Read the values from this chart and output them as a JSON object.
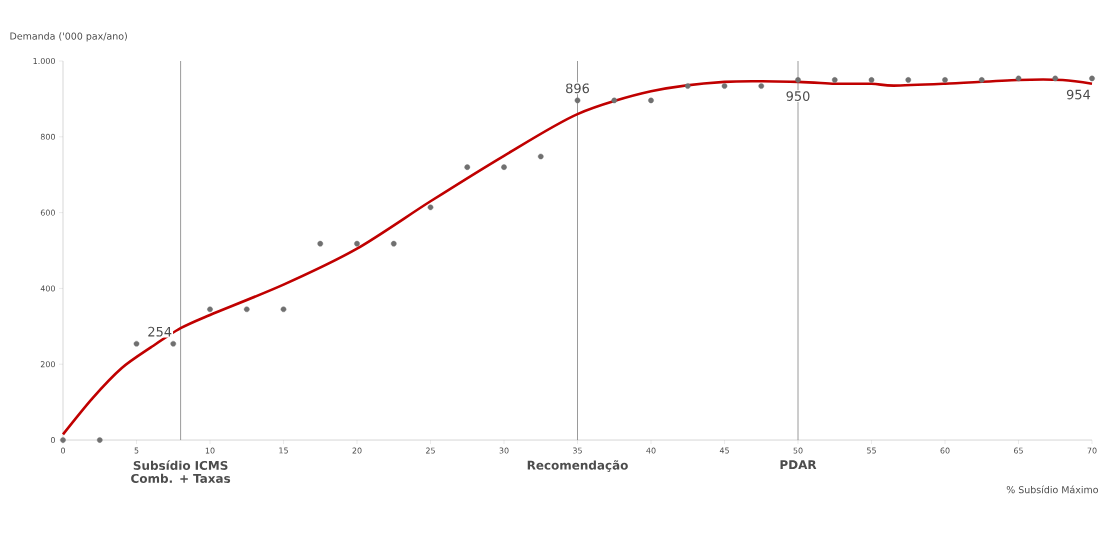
{
  "chart_data": {
    "type": "scatter",
    "ylabel": "Demanda ('000 pax/ano)",
    "xlabel": "% Subsídio Máximo",
    "xlim": [
      0,
      70
    ],
    "xticks": [
      0,
      5,
      10,
      15,
      20,
      25,
      30,
      35,
      40,
      45,
      50,
      55,
      60,
      65,
      70
    ],
    "ylim": [
      0,
      1000
    ],
    "yticks": [
      0,
      200,
      400,
      600,
      800,
      {
        "value": 1000,
        "label": "1.000"
      }
    ],
    "series": [
      {
        "marker": "circle",
        "color": "#707070",
        "x": [
          0,
          2.5,
          5,
          7.5,
          10,
          12.5,
          15,
          17.5,
          20,
          22.5,
          25,
          27.5,
          30,
          32.5,
          35,
          37.5,
          40,
          42.5,
          45,
          47.5,
          50,
          52.5,
          55,
          57.5,
          60,
          62.5,
          65,
          67.5,
          70
        ],
        "values": [
          0,
          0,
          254,
          254,
          345,
          345,
          345,
          518,
          518,
          518,
          614,
          720,
          720,
          748,
          896,
          896,
          896,
          934,
          934,
          934,
          950,
          950,
          950,
          950,
          950,
          950,
          954,
          954,
          954
        ]
      },
      {
        "type": "line",
        "marker": "none",
        "color": "#c00000",
        "x": [
          0,
          2,
          4,
          6,
          8,
          10,
          15,
          20,
          25,
          30,
          35,
          40,
          45,
          50,
          52.5,
          55,
          56.5,
          60,
          65,
          68,
          70
        ],
        "values": [
          15,
          110,
          190,
          245,
          295,
          330,
          410,
          505,
          630,
          750,
          860,
          920,
          945,
          945,
          940,
          940,
          935,
          940,
          950,
          950,
          940
        ]
      }
    ],
    "annotations": [
      {
        "text": "254",
        "x": 7.5,
        "y": 254
      },
      {
        "text": "896",
        "x": 35,
        "y": 896
      },
      {
        "text": "950",
        "x": 50,
        "y": 950
      },
      {
        "text": "954",
        "x": 70,
        "y": 954
      }
    ],
    "ref_lines": [
      {
        "axis": "x",
        "value": 8,
        "label": "Subsídio ICMS Comb. + Taxas",
        "color": "#808080"
      },
      {
        "axis": "x",
        "value": 35,
        "label": "Recomendação",
        "color": "#808080"
      },
      {
        "axis": "x",
        "value": 50,
        "label": "PDAR",
        "color": "#808080"
      }
    ]
  }
}
